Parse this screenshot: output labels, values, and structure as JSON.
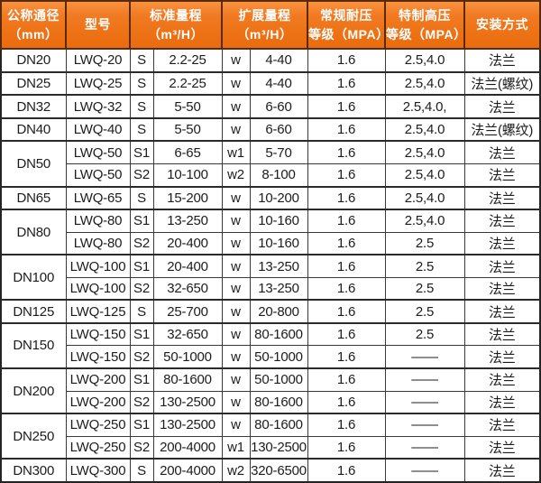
{
  "colors": {
    "header_accent": "#ee7317",
    "header_gradient_top": "#f9923f",
    "header_gradient_bottom": "#e96c0e",
    "header_text": "#ffffff",
    "header_border": "#5a2a06",
    "body_border": "#393939",
    "body_text": "#1c1c1c"
  },
  "table": {
    "headers": [
      "公称通径\n（mm）",
      "型号",
      "标准量程\n（m³/H）",
      "扩展量程\n（m³/H）",
      "常规耐压\n等级（MPA）",
      "特制高压\n等级（MPA）",
      "安装方式"
    ],
    "groups": [
      {
        "dn": "DN20",
        "rows": [
          {
            "model": "LWQ-20",
            "s": "S",
            "std": "2.2-25",
            "w": "w",
            "ext": "4-40",
            "mpa": "1.6",
            "hp": "2.5,4.0",
            "mount": "法兰"
          }
        ]
      },
      {
        "dn": "DN25",
        "rows": [
          {
            "model": "LWQ-25",
            "s": "S",
            "std": "2.2-25",
            "w": "w",
            "ext": "4-40",
            "mpa": "1.6",
            "hp": "2.5,4.0",
            "mount": "法兰(螺纹)"
          }
        ]
      },
      {
        "dn": "DN32",
        "rows": [
          {
            "model": "LWQ-32",
            "s": "S",
            "std": "5-50",
            "w": "w",
            "ext": "6-60",
            "mpa": "1.6",
            "hp": "2.5,4.0,",
            "mount": "法兰"
          }
        ]
      },
      {
        "dn": "DN40",
        "rows": [
          {
            "model": "LWQ-40",
            "s": "S",
            "std": "5-50",
            "w": "w",
            "ext": "6-60",
            "mpa": "1.6",
            "hp": "2.5,4.0",
            "mount": "法兰(螺纹)"
          }
        ]
      },
      {
        "dn": "DN50",
        "rows": [
          {
            "model": "LWQ-50",
            "s": "S1",
            "std": "6-65",
            "w": "w1",
            "ext": "5-70",
            "mpa": "1.6",
            "hp": "2.5,4.0",
            "mount": "法兰"
          },
          {
            "model": "LWQ-50",
            "s": "S2",
            "std": "10-100",
            "w": "w2",
            "ext": "8-100",
            "mpa": "1.6",
            "hp": "2.5,4.0",
            "mount": "法兰"
          }
        ]
      },
      {
        "dn": "DN65",
        "rows": [
          {
            "model": "LWQ-65",
            "s": "S",
            "std": "15-200",
            "w": "w",
            "ext": "10-200",
            "mpa": "1.6",
            "hp": "2.5,4.0",
            "mount": "法兰"
          }
        ]
      },
      {
        "dn": "DN80",
        "rows": [
          {
            "model": "LWQ-80",
            "s": "S1",
            "std": "13-250",
            "w": "w",
            "ext": "10-160",
            "mpa": "1.6",
            "hp": "2.5,4.0",
            "mount": "法兰"
          },
          {
            "model": "LWQ-80",
            "s": "S2",
            "std": "20-400",
            "w": "w",
            "ext": "10-160",
            "mpa": "1.6",
            "hp": "2.5",
            "mount": "法兰"
          }
        ]
      },
      {
        "dn": "DN100",
        "rows": [
          {
            "model": "LWQ-100",
            "s": "S1",
            "std": "20-400",
            "w": "w",
            "ext": "13-250",
            "mpa": "1.6",
            "hp": "2.5",
            "mount": "法兰"
          },
          {
            "model": "LWQ-100",
            "s": "S2",
            "std": "32-650",
            "w": "w",
            "ext": "13-250",
            "mpa": "1.6",
            "hp": "2.5",
            "mount": "法兰"
          }
        ]
      },
      {
        "dn": "DN125",
        "rows": [
          {
            "model": "LWQ-125",
            "s": "S",
            "std": "25-700",
            "w": "w",
            "ext": "20-800",
            "mpa": "1.6",
            "hp": "2.5",
            "mount": "法兰"
          }
        ]
      },
      {
        "dn": "DN150",
        "rows": [
          {
            "model": "LWQ-150",
            "s": "S1",
            "std": "32-650",
            "w": "w",
            "ext": "80-1600",
            "mpa": "1.6",
            "hp": "2.5",
            "mount": "法兰"
          },
          {
            "model": "LWQ-150",
            "s": "S2",
            "std": "50-1000",
            "w": "w",
            "ext": "50-1000",
            "mpa": "1.6",
            "hp": "——",
            "mount": "法兰"
          }
        ]
      },
      {
        "dn": "DN200",
        "rows": [
          {
            "model": "LWQ-200",
            "s": "S1",
            "std": "80-1600",
            "w": "w",
            "ext": "50-1000",
            "mpa": "1.6",
            "hp": "——",
            "mount": "法兰"
          },
          {
            "model": "LWQ-200",
            "s": "S2",
            "std": "130-2500",
            "w": "w",
            "ext": "80-1600",
            "mpa": "1.6",
            "hp": "——",
            "mount": "法兰"
          }
        ]
      },
      {
        "dn": "DN250",
        "rows": [
          {
            "model": "LWQ-250",
            "s": "S1",
            "std": "130-2500",
            "w": "w",
            "ext": "80-1600",
            "mpa": "1.6",
            "hp": "——",
            "mount": "法兰"
          },
          {
            "model": "LWQ-250",
            "s": "S2",
            "std": "200-4000",
            "w": "w1",
            "ext": "130-2500",
            "mpa": "1.6",
            "hp": "——",
            "mount": "法兰"
          }
        ]
      },
      {
        "dn": "DN300",
        "rows": [
          {
            "model": "LWQ-300",
            "s": "S",
            "std": "200-4000",
            "w": "w2",
            "ext": "320-6500",
            "mpa": "1.6",
            "hp": "——",
            "mount": "法兰"
          }
        ]
      }
    ]
  }
}
